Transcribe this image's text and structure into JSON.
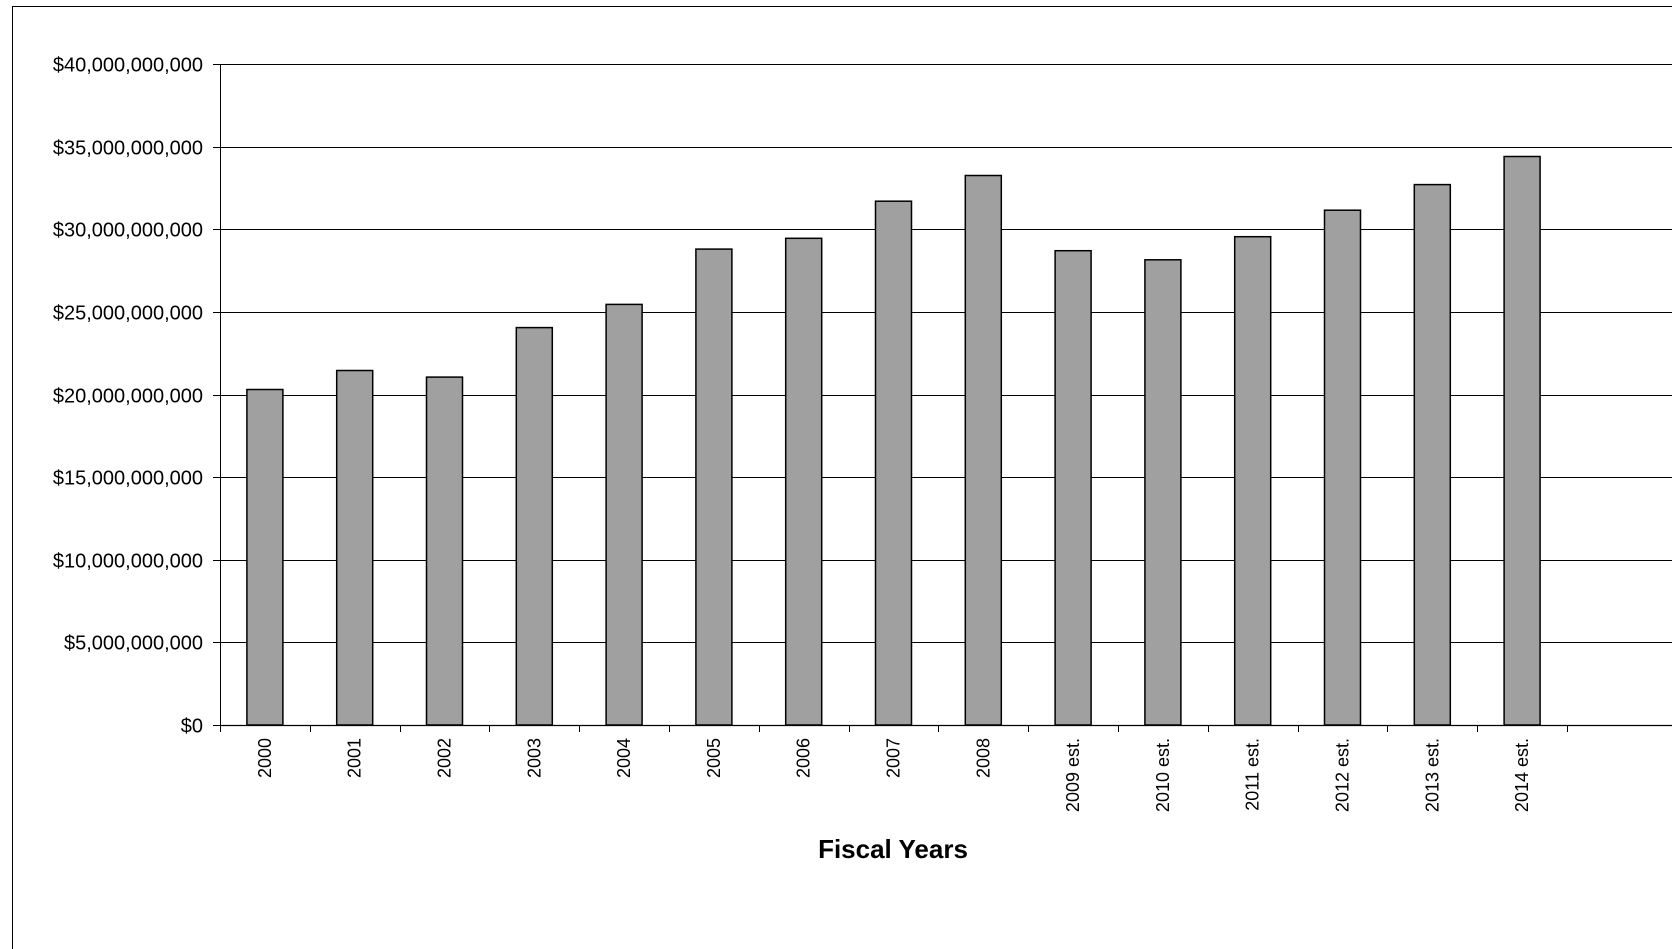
{
  "chart_data": {
    "type": "bar",
    "title": "",
    "xlabel": "Fiscal Years",
    "ylabel": "",
    "ylim": [
      0,
      40000000000
    ],
    "yticks": [
      0,
      5000000000,
      10000000000,
      15000000000,
      20000000000,
      25000000000,
      30000000000,
      35000000000,
      40000000000
    ],
    "ytick_labels": [
      "$0",
      "$5,000,000,000",
      "$10,000,000,000",
      "$15,000,000,000",
      "$20,000,000,000",
      "$25,000,000,000",
      "$30,000,000,000",
      "$35,000,000,000",
      "$40,000,000,000"
    ],
    "categories": [
      "2000",
      "2001",
      "2002",
      "2003",
      "2004",
      "2005",
      "2006",
      "2007",
      "2008",
      "2009 est.",
      "2010 est.",
      "2011 est.",
      "2012 est.",
      "2013 est.",
      "2014 est."
    ],
    "values": [
      20300000000,
      21450000000,
      21050000000,
      24050000000,
      25450000000,
      28800000000,
      29450000000,
      31700000000,
      33250000000,
      28700000000,
      28150000000,
      29550000000,
      31150000000,
      32700000000,
      34400000000
    ],
    "grid": true,
    "bar_color": "#a0a0a0",
    "edge_color": "#000000"
  }
}
